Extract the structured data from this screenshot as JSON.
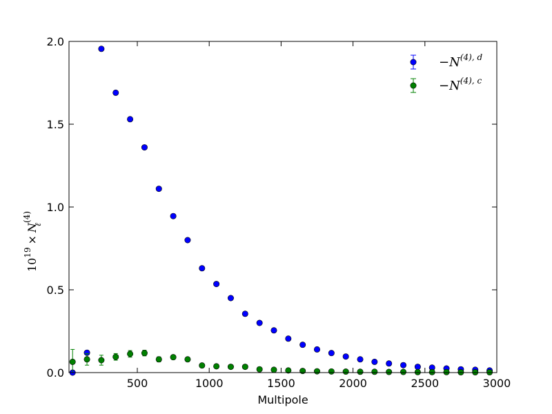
{
  "chart_data": {
    "type": "scatter",
    "xlabel": "Multipole",
    "ylabel": "10^{19} × N_ℓ^{(4)}",
    "ylabel_parts": {
      "base": "10",
      "exp": "19",
      "times": "×",
      "var": "N",
      "sub": "ℓ",
      "sup": "(4)"
    },
    "xlim": [
      25,
      3000
    ],
    "ylim": [
      0.0,
      2.0
    ],
    "x_ticks": [
      500,
      1000,
      1500,
      2000,
      2500,
      3000
    ],
    "x_tick_labels": [
      "500",
      "1000",
      "1500",
      "2000",
      "2500",
      "3000"
    ],
    "y_ticks": [
      0.0,
      0.5,
      1.0,
      1.5,
      2.0
    ],
    "y_tick_labels": [
      "0.0",
      "0.5",
      "1.0",
      "1.5",
      "2.0"
    ],
    "grid": false,
    "legend_placement": "top-right",
    "series": [
      {
        "name": "−N^{(4), d}",
        "legend_parts": {
          "minus": "−",
          "var": "N",
          "sup": "(4), d"
        },
        "color": "#0000ff",
        "x": [
          50,
          150,
          250,
          350,
          450,
          550,
          650,
          750,
          850,
          950,
          1050,
          1150,
          1250,
          1350,
          1450,
          1550,
          1650,
          1750,
          1850,
          1950,
          2050,
          2150,
          2250,
          2350,
          2450,
          2550,
          2650,
          2750,
          2850,
          2950
        ],
        "y": [
          0.0,
          0.12,
          1.955,
          1.69,
          1.53,
          1.36,
          1.11,
          0.945,
          0.8,
          0.63,
          0.535,
          0.45,
          0.355,
          0.3,
          0.255,
          0.205,
          0.168,
          0.14,
          0.118,
          0.097,
          0.08,
          0.065,
          0.055,
          0.045,
          0.035,
          0.03,
          0.025,
          0.02,
          0.017,
          0.013
        ],
        "yerr": [
          0.003,
          0.003,
          0.003,
          0.003,
          0.003,
          0.003,
          0.003,
          0.003,
          0.003,
          0.003,
          0.003,
          0.003,
          0.003,
          0.003,
          0.003,
          0.003,
          0.003,
          0.003,
          0.003,
          0.003,
          0.003,
          0.003,
          0.003,
          0.003,
          0.003,
          0.003,
          0.003,
          0.003,
          0.003,
          0.003
        ]
      },
      {
        "name": "−N^{(4), c}",
        "legend_parts": {
          "minus": "−",
          "var": "N",
          "sup": "(4), c"
        },
        "color": "#008000",
        "x": [
          50,
          150,
          250,
          350,
          450,
          550,
          650,
          750,
          850,
          950,
          1050,
          1150,
          1250,
          1350,
          1450,
          1550,
          1650,
          1750,
          1850,
          1950,
          2050,
          2150,
          2250,
          2350,
          2450,
          2550,
          2650,
          2750,
          2850,
          2950
        ],
        "y": [
          0.065,
          0.08,
          0.075,
          0.095,
          0.113,
          0.118,
          0.08,
          0.093,
          0.08,
          0.043,
          0.038,
          0.035,
          0.035,
          0.02,
          0.017,
          0.013,
          0.01,
          0.008,
          0.007,
          0.006,
          0.005,
          0.005,
          0.004,
          0.004,
          0.003,
          0.003,
          0.003,
          0.002,
          0.002,
          0.002
        ],
        "yerr": [
          0.075,
          0.035,
          0.03,
          0.02,
          0.02,
          0.017,
          0.015,
          0.013,
          0.012,
          0.01,
          0.009,
          0.008,
          0.007,
          0.006,
          0.006,
          0.005,
          0.005,
          0.004,
          0.004,
          0.004,
          0.003,
          0.003,
          0.003,
          0.003,
          0.003,
          0.002,
          0.002,
          0.002,
          0.002,
          0.002
        ]
      }
    ]
  }
}
